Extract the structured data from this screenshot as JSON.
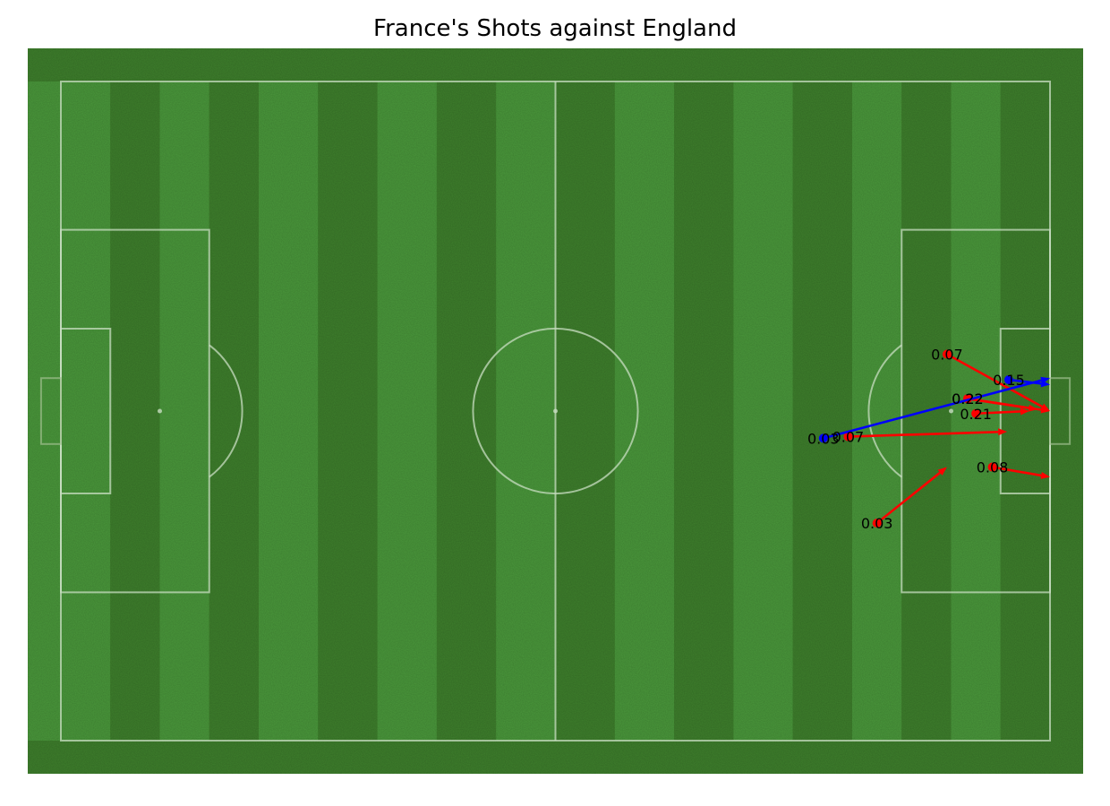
{
  "chart_data": {
    "type": "scatter",
    "title": "France's Shots against England",
    "pitch": {
      "length": 120,
      "width": 80,
      "colors": {
        "grass_light": "#4a983b",
        "grass_dark": "#3e7f2c",
        "line": "#c8ddc2"
      }
    },
    "series": [
      {
        "color": "#ff0000",
        "shots": [
          {
            "x": 107.5,
            "y": 33.1,
            "end_x": 120.0,
            "end_y": 40.0,
            "label": "0.07"
          },
          {
            "x": 110.0,
            "y": 38.5,
            "end_x": 118.5,
            "end_y": 39.8,
            "label": "0.22"
          },
          {
            "x": 110.0,
            "y": 38.5,
            "end_x": 120.0,
            "end_y": 40.0,
            "label": "0.22"
          },
          {
            "x": 111.0,
            "y": 40.3,
            "end_x": 117.5,
            "end_y": 40.0,
            "label": "0.21"
          },
          {
            "x": 95.5,
            "y": 43.1,
            "end_x": 114.8,
            "end_y": 42.5,
            "label": "0.07"
          },
          {
            "x": 113.0,
            "y": 46.8,
            "end_x": 120.0,
            "end_y": 48.0,
            "label": "0.08"
          },
          {
            "x": 99.0,
            "y": 53.6,
            "end_x": 107.5,
            "end_y": 46.8,
            "label": "0.03"
          }
        ]
      },
      {
        "color": "#0000ff",
        "shots": [
          {
            "x": 115.0,
            "y": 36.2,
            "end_x": 120.0,
            "end_y": 36.8,
            "label": "0.15"
          },
          {
            "x": 92.5,
            "y": 43.3,
            "end_x": 120.0,
            "end_y": 36.0,
            "label": "0.03"
          }
        ]
      }
    ]
  }
}
